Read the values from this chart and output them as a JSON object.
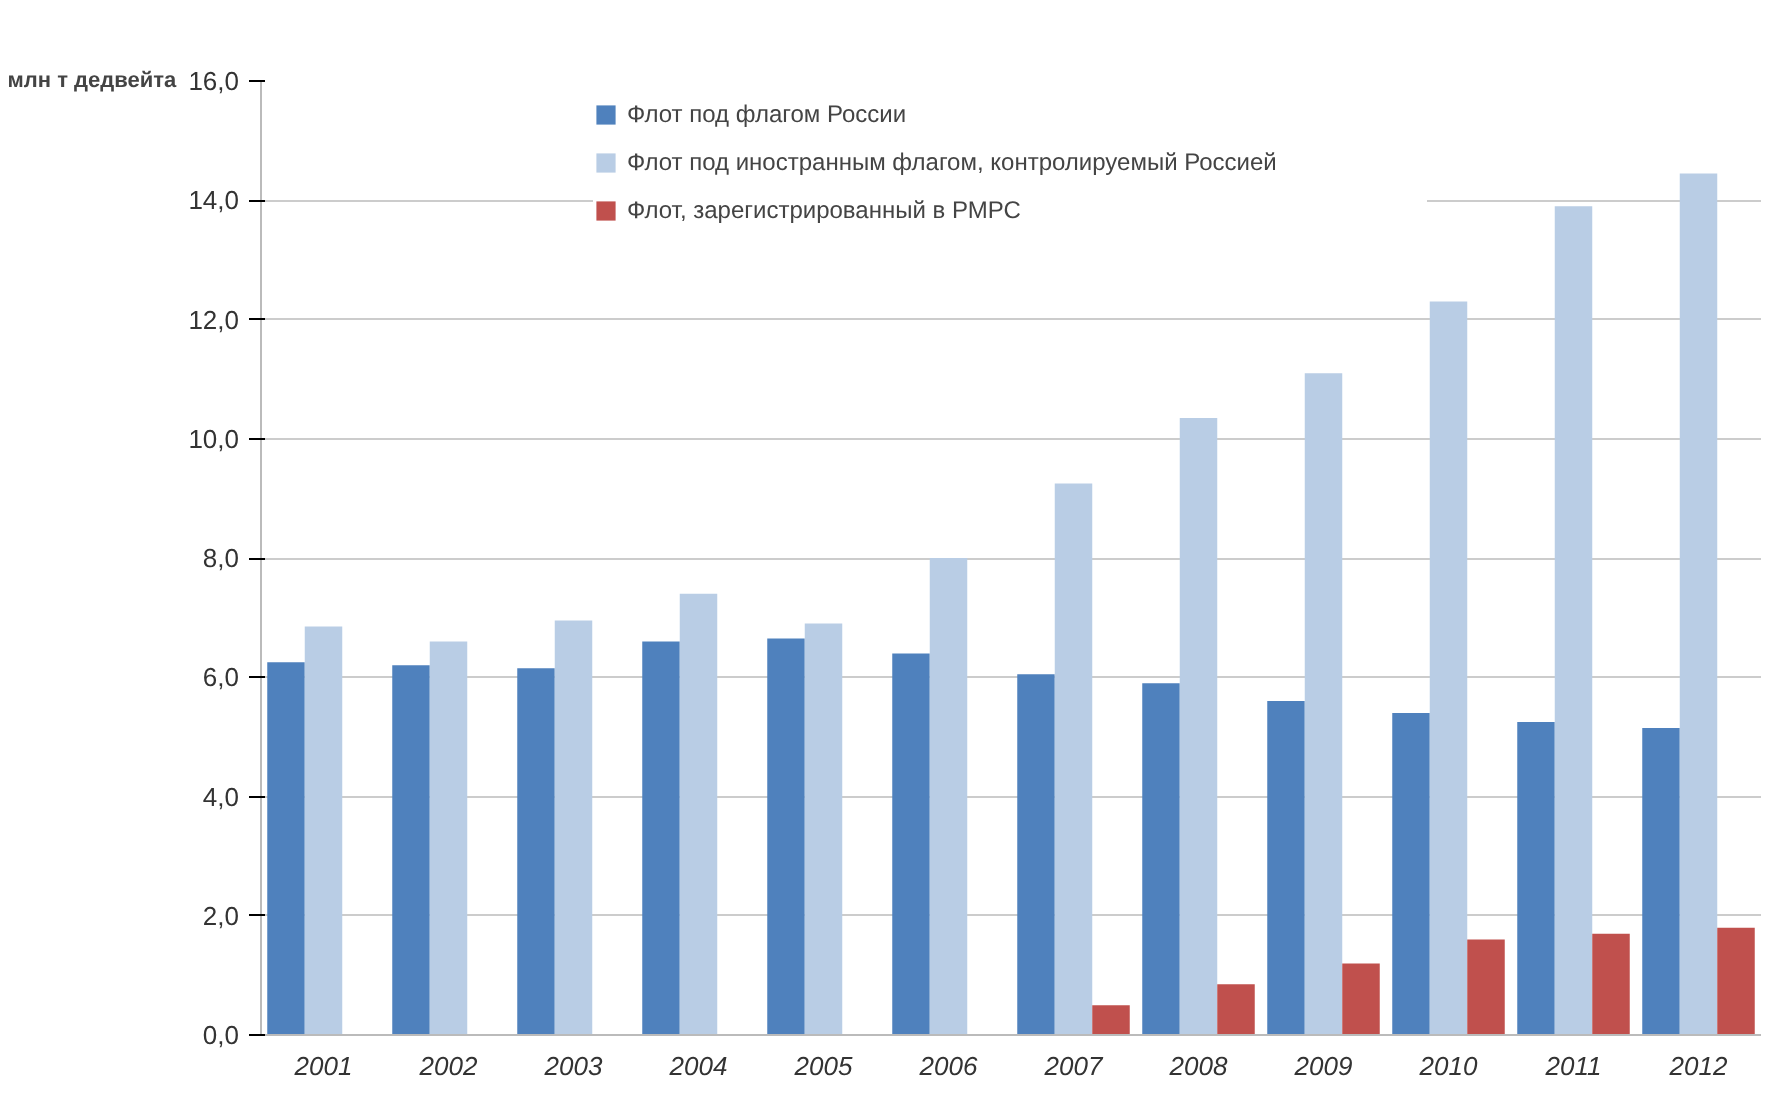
{
  "chart_data": {
    "type": "bar",
    "ylabel": "млн  т дедвейта",
    "categories": [
      "2001",
      "2002",
      "2003",
      "2004",
      "2005",
      "2006",
      "2007",
      "2008",
      "2009",
      "2010",
      "2011",
      "2012"
    ],
    "series": [
      {
        "name": "Флот под флагом России",
        "color": "#4f81bd",
        "values": [
          6.25,
          6.2,
          6.15,
          6.6,
          6.65,
          6.4,
          6.05,
          5.9,
          5.6,
          5.4,
          5.25,
          5.15
        ]
      },
      {
        "name": "Флот под иностранным флагом, контролируемый Россией",
        "color": "#b9cde5",
        "values": [
          6.85,
          6.6,
          6.95,
          7.4,
          6.9,
          8.0,
          9.25,
          10.35,
          11.1,
          12.3,
          13.9,
          14.45
        ]
      },
      {
        "name": "Флот, зарегистрированный в РМРС",
        "color": "#c0504d",
        "values": [
          null,
          null,
          null,
          null,
          null,
          null,
          0.5,
          0.85,
          1.2,
          1.6,
          1.7,
          1.8
        ]
      }
    ],
    "ylim": [
      0,
      16
    ],
    "yticks": [
      {
        "value": 0,
        "label": "0,0"
      },
      {
        "value": 2,
        "label": "2,0"
      },
      {
        "value": 4,
        "label": "4,0"
      },
      {
        "value": 6,
        "label": "6,0"
      },
      {
        "value": 8,
        "label": "8,0"
      },
      {
        "value": 10,
        "label": "10,0"
      },
      {
        "value": 12,
        "label": "12,0"
      },
      {
        "value": 14,
        "label": "14,0"
      },
      {
        "value": 16,
        "label": "16,0"
      }
    ],
    "grid": "y",
    "legend": "top"
  }
}
